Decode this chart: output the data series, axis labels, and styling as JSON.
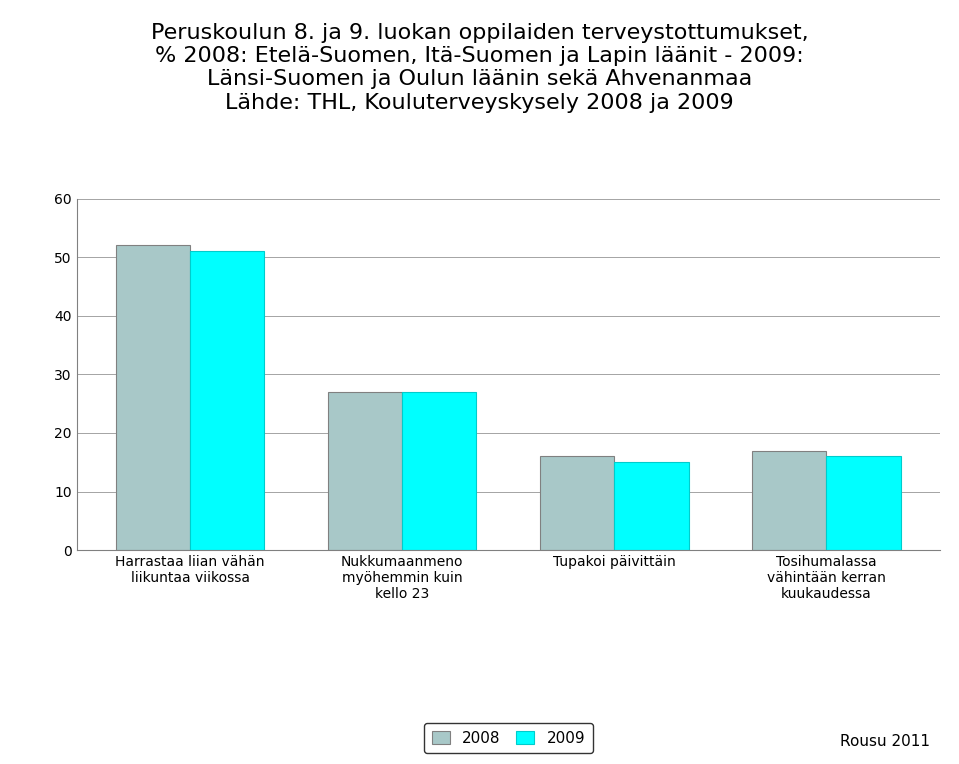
{
  "title": "Peruskoulun 8. ja 9. luokan oppilaiden terveystottumukset,\n% 2008: Etelä-Suomen, Itä-Suomen ja Lapin läänit - 2009:\nLänsi-Suomen ja Oulun läänin sekä Ahvenanmaa\nLähde: THL, Kouluterveyskysely 2008 ja 2009",
  "categories": [
    "Harrastaa liian vähän\nliikuntaa viikossa",
    "Nukkumaanmeno\nmyöhemmin kuin\nkello 23",
    "Tupakoi päivittäin",
    "Tosihumalassa\nvähintään kerran\nkuukaudessa"
  ],
  "values_2008": [
    52,
    27,
    16,
    17
  ],
  "values_2009": [
    51,
    27,
    15,
    16
  ],
  "color_2008": "#a8c8c8",
  "color_2009": "#00ffff",
  "ylim": [
    0,
    60
  ],
  "yticks": [
    0,
    10,
    20,
    30,
    40,
    50,
    60
  ],
  "legend_labels": [
    "2008",
    "2009"
  ],
  "footnote": "Rousu 2011",
  "bar_width": 0.35,
  "title_fontsize": 16,
  "tick_fontsize": 10,
  "legend_fontsize": 11,
  "footnote_fontsize": 11
}
